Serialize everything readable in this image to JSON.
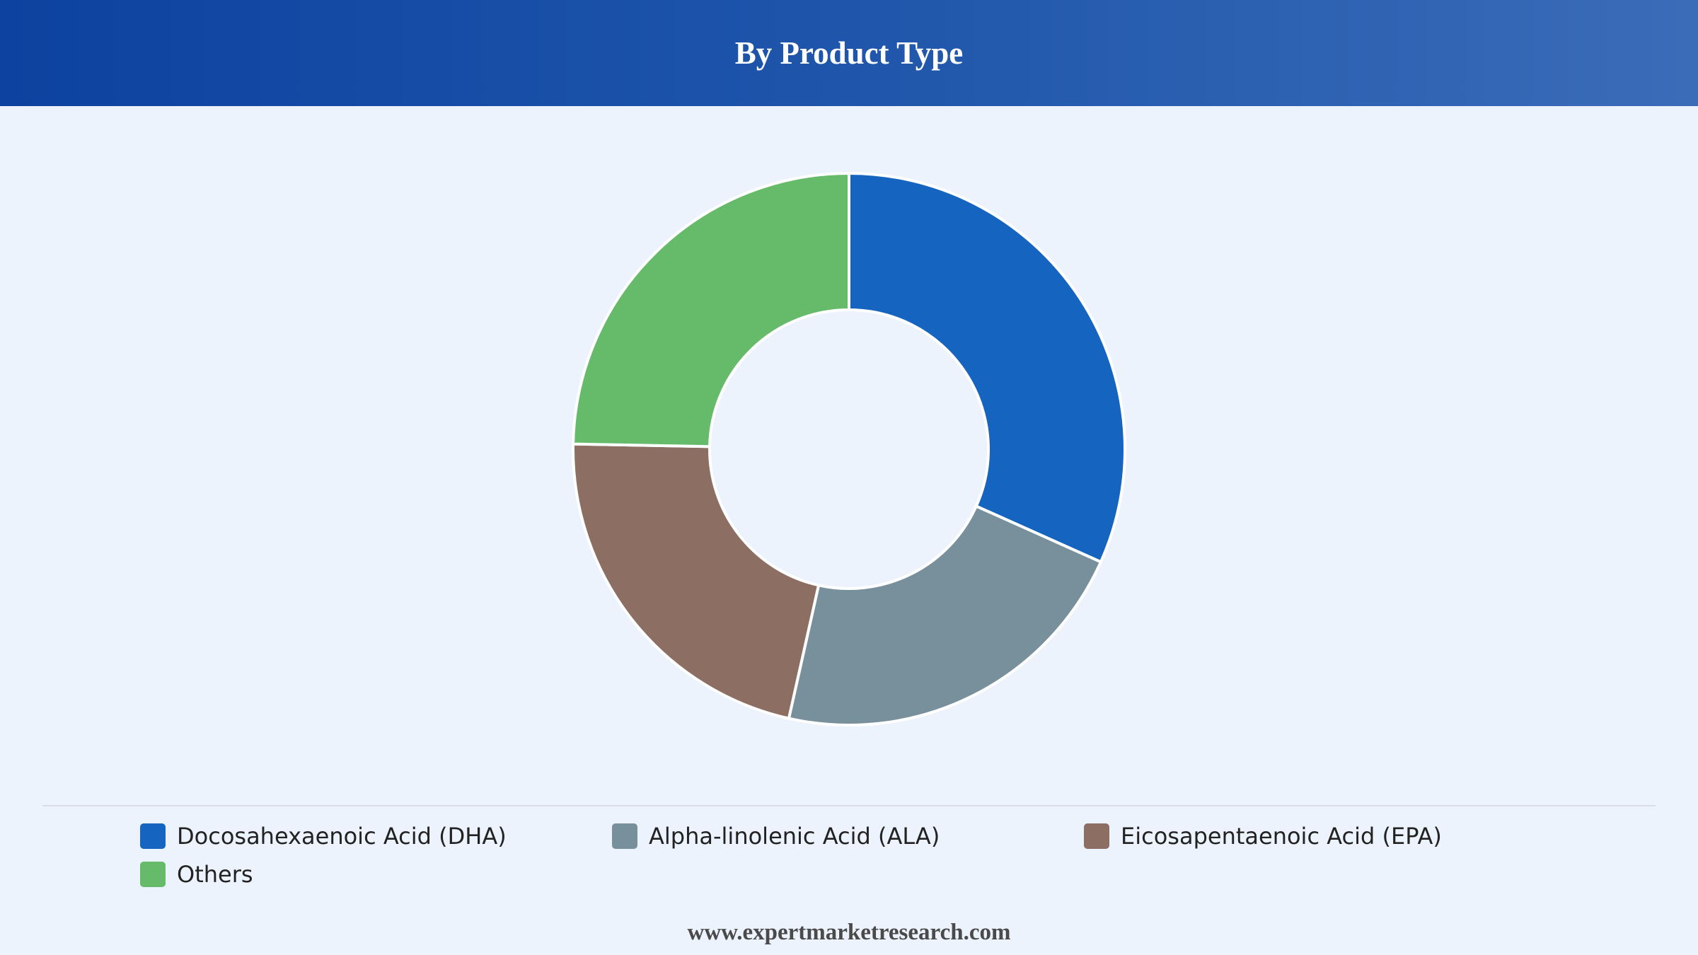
{
  "header": {
    "title": "By Product Type"
  },
  "chart_data": {
    "type": "pie",
    "donut": true,
    "categories": [
      "Docosahexaenoic Acid (DHA)",
      "Alpha-linolenic Acid (ALA)",
      "Eicosapentaenoic Acid (EPA)",
      "Others"
    ],
    "values": [
      31.7,
      21.8,
      21.8,
      24.7
    ],
    "colors": [
      "#1565c0",
      "#78909c",
      "#8d6e63",
      "#66bb6a"
    ],
    "legend_position": "bottom"
  },
  "footer": {
    "text": "www.expertmarketresearch.com"
  }
}
